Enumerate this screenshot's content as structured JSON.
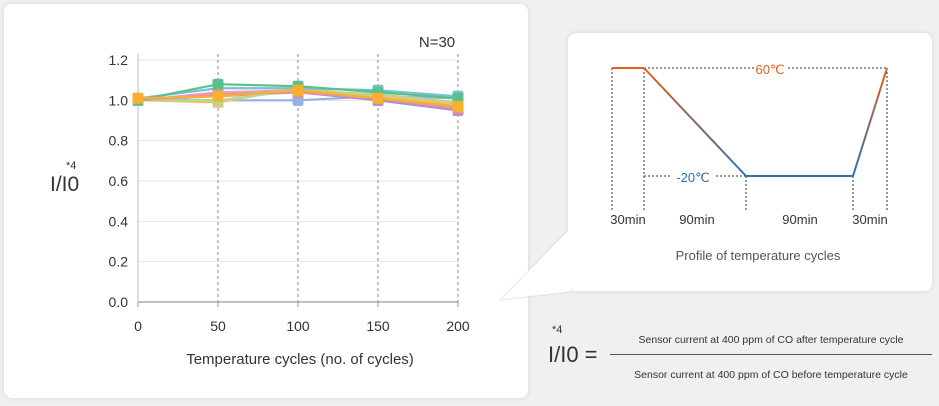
{
  "chart_data": [
    {
      "type": "line",
      "annotation": "N=30",
      "xlabel": "Temperature cycles (no. of cycles)",
      "ylabel": "I/I0",
      "ylabel_footnote": "*4",
      "x": [
        0,
        50,
        100,
        150,
        200
      ],
      "x_ticks": [
        "0",
        "50",
        "100",
        "150",
        "200"
      ],
      "y_ticks": [
        "0.0",
        "0.2",
        "0.4",
        "0.6",
        "0.8",
        "1.0",
        "1.2"
      ],
      "xlim": [
        0,
        200
      ],
      "ylim": [
        0,
        1.2
      ],
      "grid": "vertical dashed",
      "series": [
        {
          "color": "#8fb4e8",
          "values": [
            1.01,
            1.0,
            1.0,
            1.02,
            1.01
          ]
        },
        {
          "color": "#e8a0c8",
          "values": [
            1.0,
            1.04,
            1.05,
            1.0,
            0.97
          ]
        },
        {
          "color": "#a88fd8",
          "values": [
            1.01,
            1.02,
            1.04,
            1.0,
            0.95
          ]
        },
        {
          "color": "#f0c070",
          "values": [
            1.0,
            0.99,
            1.06,
            1.02,
            0.98
          ]
        },
        {
          "color": "#b8d890",
          "values": [
            1.0,
            1.0,
            1.05,
            1.03,
            0.99
          ]
        },
        {
          "color": "#7ac0d8",
          "values": [
            1.01,
            1.06,
            1.06,
            1.05,
            1.02
          ]
        },
        {
          "color": "#ee9090",
          "values": [
            1.0,
            1.03,
            1.04,
            1.01,
            0.96
          ]
        },
        {
          "color": "#5dc08a",
          "values": [
            1.0,
            1.08,
            1.07,
            1.04,
            1.01
          ]
        },
        {
          "color": "#f7b030",
          "values": [
            1.01,
            1.02,
            1.05,
            1.01,
            0.97
          ]
        }
      ]
    },
    {
      "type": "line",
      "title": "Profile of temperature cycles",
      "segments": [
        "30min",
        "90min",
        "90min",
        "30min"
      ],
      "high_label": "60℃",
      "low_label": "-20℃",
      "high_color": "#e2601a",
      "low_color": "#2b73b0"
    }
  ],
  "formula": {
    "symbol": "I/I0 =",
    "footnote": "*4",
    "numerator": "Sensor current at 400 ppm of CO after temperature cycle",
    "denominator": "Sensor current at 400 ppm of CO before temperature cycle"
  }
}
